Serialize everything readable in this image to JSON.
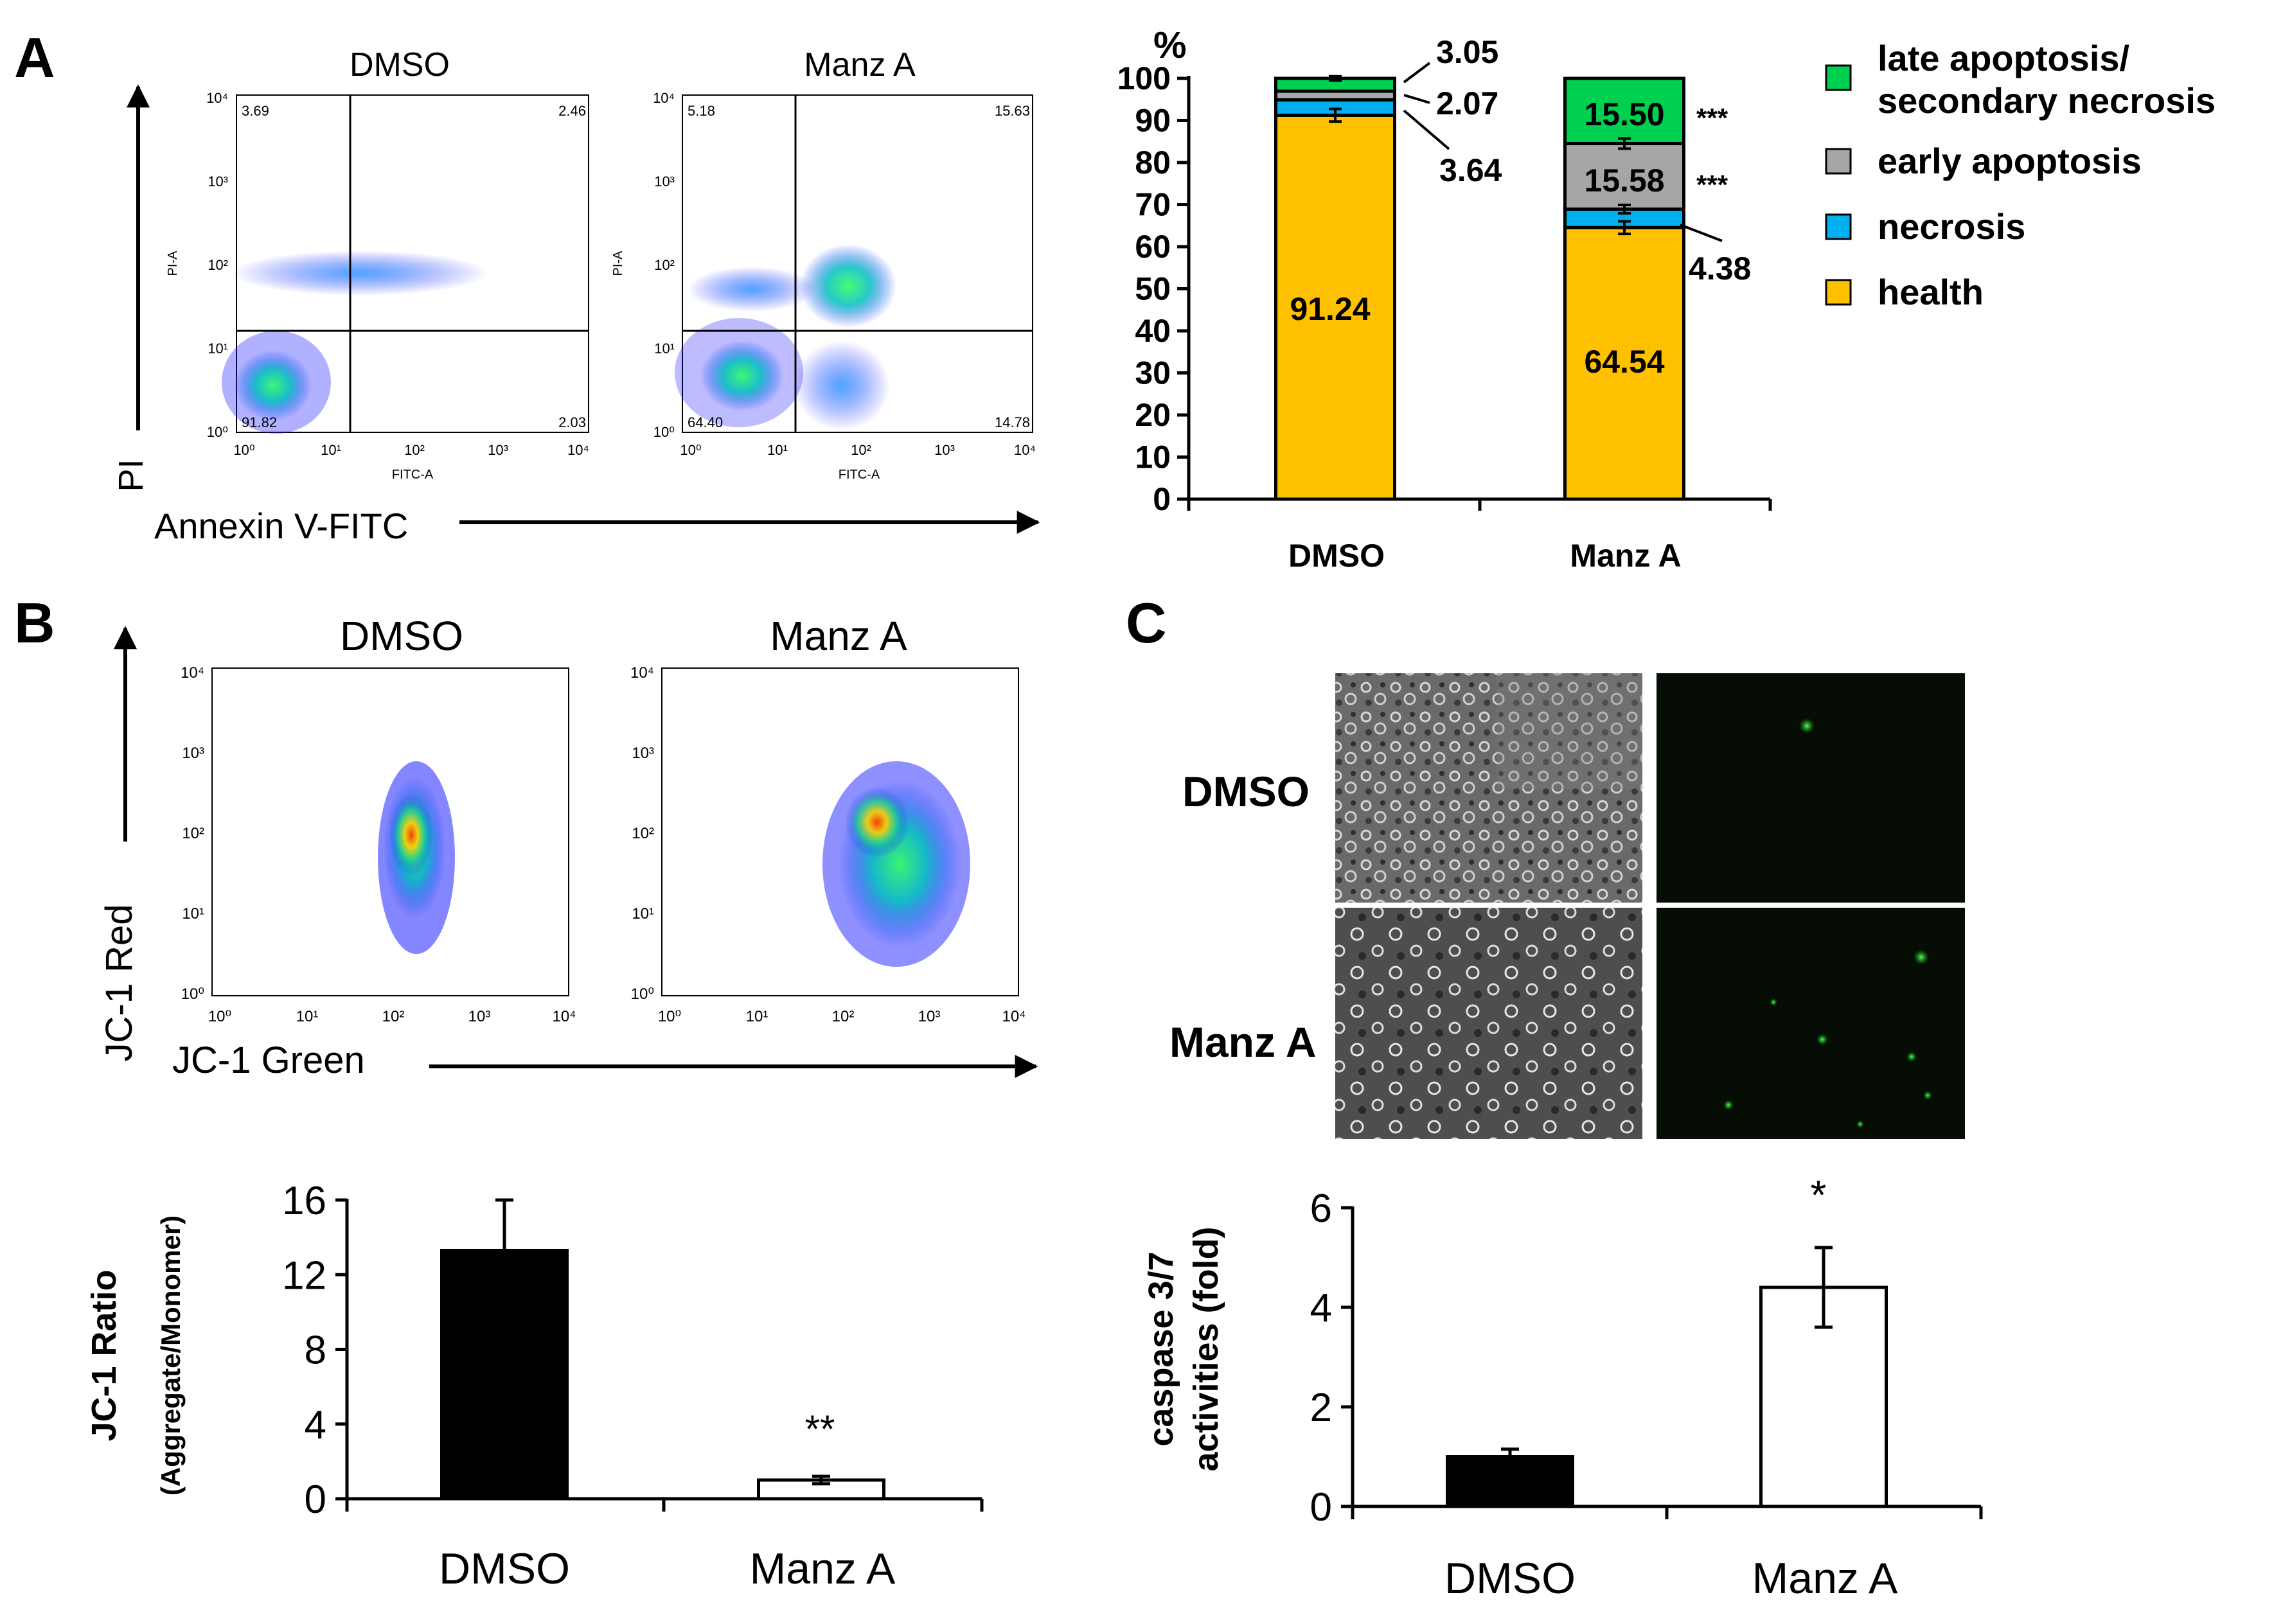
{
  "panels": {
    "A": {
      "letter": "A"
    },
    "B": {
      "letter": "B"
    },
    "C": {
      "letter": "C"
    }
  },
  "flow": {
    "annexin": {
      "y_axis_label": "PI",
      "x_axis_label": "Annexin V-FITC",
      "x_channel": "FITC-A",
      "y_channel": "PI-A",
      "ticks": [
        "10⁰",
        "10¹",
        "10²",
        "10³",
        "10⁴"
      ],
      "plots": [
        {
          "title": "DMSO",
          "quadrants": {
            "ul": "3.69",
            "ur": "2.46",
            "ll": "91.82",
            "lr": "2.03"
          }
        },
        {
          "title": "Manz A",
          "quadrants": {
            "ul": "5.18",
            "ur": "15.63",
            "ll": "64.40",
            "lr": "14.78"
          }
        }
      ]
    },
    "jc1": {
      "y_axis_label": "JC-1 Red",
      "x_axis_label": "JC-1 Green",
      "ticks": [
        "10⁰",
        "10¹",
        "10²",
        "10³",
        "10⁴"
      ],
      "plots": [
        {
          "title": "DMSO"
        },
        {
          "title": "Manz A"
        }
      ]
    }
  },
  "micrographs": {
    "row_labels": [
      "DMSO",
      "Manz A"
    ],
    "colors": {
      "phase_bg": "#5a5a5a",
      "fluor_bg": "#050d05",
      "fluor_spot": "#3ddc3d"
    }
  },
  "chart_data": [
    {
      "type": "bar",
      "stacked": true,
      "panel": "A",
      "unit_label": "%",
      "categories": [
        "DMSO",
        "Manz A"
      ],
      "ylim": [
        0,
        100
      ],
      "yticks": [
        0,
        10,
        20,
        30,
        40,
        50,
        60,
        70,
        80,
        90,
        100
      ],
      "series": [
        {
          "name": "health",
          "color": "#FFC000",
          "values": [
            91.24,
            64.54
          ],
          "labels": [
            "91.24",
            "64.54"
          ],
          "errors": [
            1.5,
            1.5
          ]
        },
        {
          "name": "necrosis",
          "color": "#00B0F0",
          "values": [
            3.64,
            4.38
          ],
          "labels": [
            "3.64",
            "4.38"
          ],
          "errors": [
            0,
            1.0
          ]
        },
        {
          "name": "early apoptosis",
          "color": "#A6A6A6",
          "values": [
            2.07,
            15.58
          ],
          "labels": [
            "2.07",
            "15.58"
          ],
          "errors": [
            0,
            1.2
          ]
        },
        {
          "name": "late apoptosis/ secondary necrosis",
          "color": "#00D050",
          "values": [
            3.05,
            15.5
          ],
          "labels": [
            "3.05",
            "15.50"
          ],
          "errors": [
            0.5,
            0
          ]
        }
      ],
      "legend": [
        "late apoptosis/",
        "secondary necrosis",
        "early apoptosis",
        "necrosis",
        "health"
      ],
      "significance": {
        "late": "***",
        "early": "***"
      }
    },
    {
      "type": "bar",
      "panel": "B",
      "ylabel": "JC-1 Ratio",
      "ylabel2": "(Aggregate/Monomer)",
      "categories": [
        "DMSO",
        "Manz A"
      ],
      "values": [
        13.3,
        1.0
      ],
      "errors": [
        2.7,
        0.2
      ],
      "colors": [
        "#000000",
        "#ffffff"
      ],
      "ylim": [
        0,
        16
      ],
      "yticks": [
        0,
        4,
        8,
        12,
        16
      ],
      "significance": [
        "",
        "**"
      ]
    },
    {
      "type": "bar",
      "panel": "C",
      "ylabel": "caspase 3/7",
      "ylabel2": "activities (fold)",
      "categories": [
        "DMSO",
        "Manz A"
      ],
      "values": [
        1.0,
        4.4
      ],
      "errors": [
        0.15,
        0.8
      ],
      "colors": [
        "#000000",
        "#ffffff"
      ],
      "ylim": [
        0,
        6
      ],
      "yticks": [
        0,
        2,
        4,
        6
      ],
      "significance": [
        "",
        "*"
      ]
    }
  ]
}
